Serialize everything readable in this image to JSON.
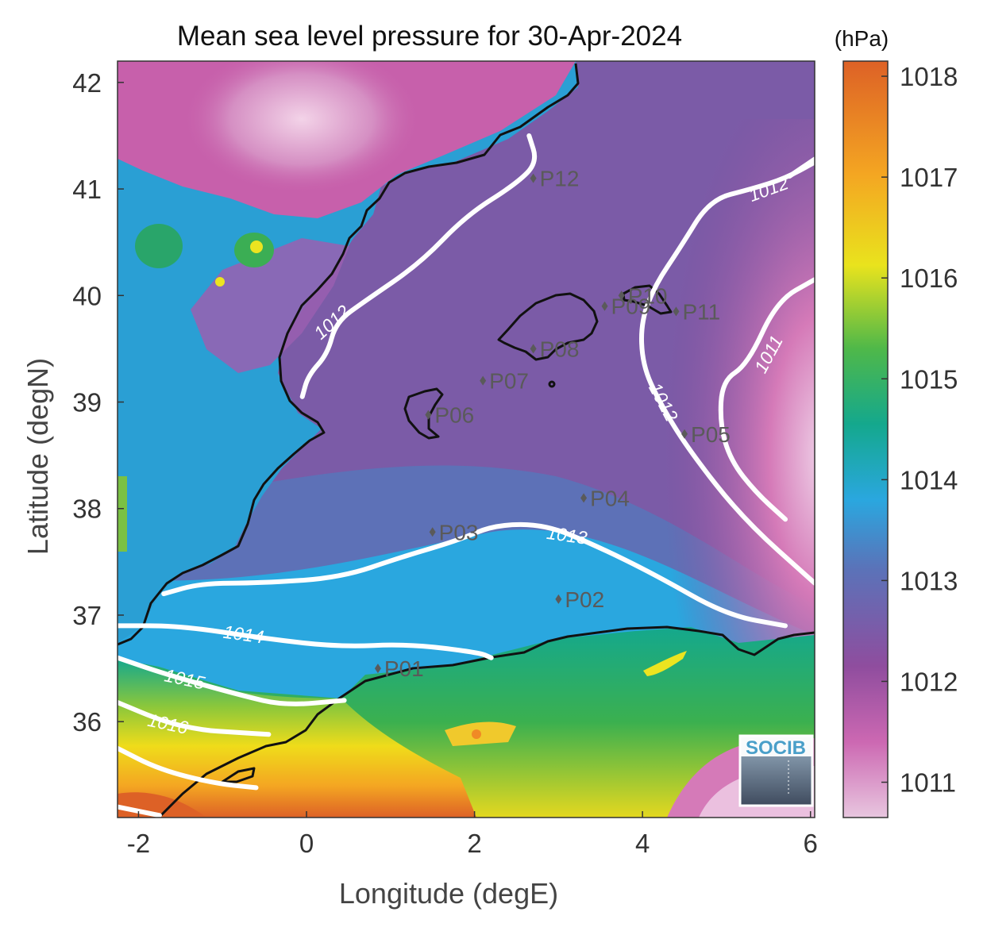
{
  "chart_data": {
    "type": "heatmap",
    "title": "Mean sea level pressure for 30-Apr-2024",
    "xlabel": "Longitude (degE)",
    "ylabel": "Latitude (degN)",
    "xlim": [
      -2.25,
      6.05
    ],
    "ylim": [
      35.1,
      42.2
    ],
    "x_ticks": [
      -2,
      0,
      2,
      4,
      6
    ],
    "y_ticks": [
      36,
      37,
      38,
      39,
      40,
      41,
      42
    ],
    "x_tick_labels": [
      "-2",
      "0",
      "2",
      "4",
      "6"
    ],
    "y_tick_labels": [
      "36",
      "37",
      "38",
      "39",
      "40",
      "41",
      "42"
    ],
    "colorbar": {
      "unit": "(hPa)",
      "range": [
        1010.65,
        1018.15
      ],
      "ticks": [
        1011,
        1012,
        1013,
        1014,
        1015,
        1016,
        1017,
        1018
      ],
      "tick_labels": [
        "1011",
        "1012",
        "1013",
        "1014",
        "1015",
        "1016",
        "1017",
        "1018"
      ],
      "colors": [
        "#e8c6df",
        "#cc68b2",
        "#8f4d9e",
        "#5a73b9",
        "#2aa7df",
        "#14a88d",
        "#4fb849",
        "#e9e31d",
        "#f4a622",
        "#dd6126"
      ]
    },
    "grid": false,
    "contours": [
      {
        "level": 1011,
        "label": "1011",
        "points": [
          [
            5.7,
            37.9
          ],
          [
            5.35,
            38.15
          ],
          [
            5.05,
            38.45
          ],
          [
            4.92,
            38.8
          ],
          [
            4.95,
            39.2
          ],
          [
            5.25,
            39.35
          ],
          [
            5.6,
            39.95
          ],
          [
            6.05,
            40.15
          ]
        ],
        "label_at": [
          5.5,
          39.45
        ],
        "label_angle": -62
      },
      {
        "level": 1012,
        "label": "1012",
        "points": [
          [
            -0.05,
            39.05
          ],
          [
            0.02,
            39.25
          ],
          [
            0.25,
            39.45
          ],
          [
            0.35,
            39.75
          ],
          [
            0.7,
            39.95
          ],
          [
            1.35,
            40.3
          ],
          [
            1.9,
            40.75
          ],
          [
            2.5,
            41.05
          ],
          [
            2.75,
            41.25
          ],
          [
            2.65,
            41.5
          ]
        ],
        "label_at": [
          0.3,
          39.75
        ],
        "label_angle": -42
      },
      {
        "level": 1012,
        "label": "1012",
        "points": [
          [
            6.05,
            37.3
          ],
          [
            5.2,
            37.9
          ],
          [
            4.55,
            38.55
          ],
          [
            4.2,
            39.0
          ],
          [
            4.0,
            39.35
          ],
          [
            3.98,
            39.75
          ],
          [
            4.15,
            40.1
          ],
          [
            4.45,
            40.45
          ],
          [
            4.8,
            40.9
          ],
          [
            5.3,
            41.0
          ],
          [
            5.7,
            41.1
          ],
          [
            6.05,
            41.25
          ]
        ],
        "label_at": [
          4.25,
          39.0
        ],
        "label_angle": 62
      },
      {
        "level": 1012,
        "label": "1012",
        "points": [
          [
            5.75,
            41.12
          ],
          [
            6.05,
            41.28
          ]
        ],
        "label_at": [
          5.5,
          41.0
        ],
        "label_angle": -20
      },
      {
        "level": 1013,
        "label": "1013",
        "points": [
          [
            -1.7,
            37.2
          ],
          [
            -1.25,
            37.3
          ],
          [
            -0.55,
            37.3
          ],
          [
            0.4,
            37.35
          ],
          [
            1.15,
            37.55
          ],
          [
            1.8,
            37.7
          ],
          [
            2.25,
            37.85
          ],
          [
            2.85,
            37.85
          ],
          [
            3.45,
            37.65
          ],
          [
            4.15,
            37.38
          ],
          [
            5.0,
            37.0
          ],
          [
            5.7,
            36.9
          ]
        ],
        "label_at": [
          3.1,
          37.75
        ],
        "label_angle": 8
      },
      {
        "level": 1014,
        "label": "1014",
        "points": [
          [
            -2.25,
            36.9
          ],
          [
            -1.5,
            36.9
          ],
          [
            -0.5,
            36.78
          ],
          [
            0.4,
            36.7
          ],
          [
            1.2,
            36.73
          ],
          [
            2.05,
            36.65
          ],
          [
            2.2,
            36.6
          ]
        ],
        "label_at": [
          -0.75,
          36.82
        ],
        "label_angle": 8
      },
      {
        "level": 1015,
        "label": "1015",
        "points": [
          [
            -2.25,
            36.6
          ],
          [
            -1.7,
            36.45
          ],
          [
            -0.8,
            36.25
          ],
          [
            -0.25,
            36.15
          ],
          [
            0.45,
            36.2
          ]
        ],
        "label_at": [
          -1.45,
          36.4
        ],
        "label_angle": 12
      },
      {
        "level": 1016,
        "label": "1016",
        "points": [
          [
            -2.25,
            36.18
          ],
          [
            -1.7,
            36.0
          ],
          [
            -1.25,
            35.92
          ],
          [
            -0.85,
            35.9
          ],
          [
            -0.45,
            35.88
          ]
        ],
        "label_at": [
          -1.65,
          35.98
        ],
        "label_angle": 12
      },
      {
        "level": 1017,
        "label": "",
        "points": [
          [
            -2.25,
            35.75
          ],
          [
            -1.75,
            35.55
          ],
          [
            -1.1,
            35.42
          ],
          [
            -0.6,
            35.38
          ]
        ],
        "label_at": null,
        "label_angle": 0
      },
      {
        "level": 1018,
        "label": "",
        "points": [
          [
            -2.25,
            35.2
          ],
          [
            -1.75,
            35.12
          ]
        ],
        "label_at": null,
        "label_angle": 0
      }
    ],
    "stations": [
      {
        "name": "P01",
        "lon": 0.85,
        "lat": 36.5
      },
      {
        "name": "P02",
        "lon": 3.0,
        "lat": 37.15
      },
      {
        "name": "P03",
        "lon": 1.5,
        "lat": 37.78
      },
      {
        "name": "P04",
        "lon": 3.3,
        "lat": 38.1
      },
      {
        "name": "P05",
        "lon": 4.5,
        "lat": 38.7
      },
      {
        "name": "P06",
        "lon": 1.45,
        "lat": 38.88
      },
      {
        "name": "P07",
        "lon": 2.1,
        "lat": 39.2
      },
      {
        "name": "P08",
        "lon": 2.7,
        "lat": 39.5
      },
      {
        "name": "P09",
        "lon": 3.55,
        "lat": 39.9
      },
      {
        "name": "P10",
        "lon": 3.75,
        "lat": 40.0
      },
      {
        "name": "P11",
        "lon": 4.4,
        "lat": 39.85
      },
      {
        "name": "P12",
        "lon": 2.7,
        "lat": 41.1
      }
    ],
    "logo": "SOCIB"
  }
}
